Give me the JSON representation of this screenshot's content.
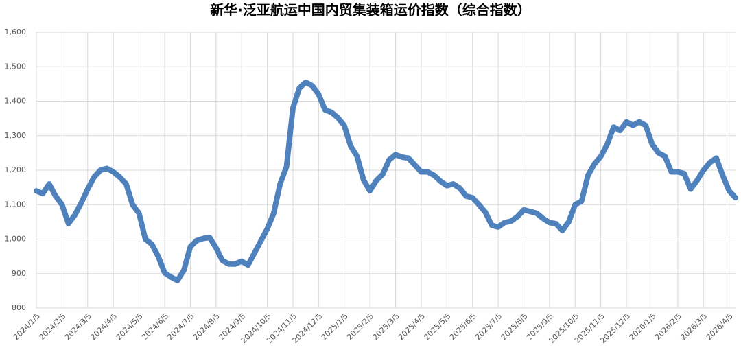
{
  "chart_data": {
    "type": "line",
    "title": "新华·泛亚航运中国内贸集装箱运价指数（综合指数）",
    "categories": [
      "2024/1/5",
      null,
      null,
      null,
      "2024/2/5",
      null,
      null,
      null,
      "2024/3/5",
      null,
      null,
      null,
      "2024/4/5",
      null,
      null,
      null,
      "2024/5/5",
      null,
      null,
      null,
      "2024/6/5",
      null,
      null,
      null,
      "2024/7/5",
      null,
      null,
      null,
      "2024/8/5",
      null,
      null,
      null,
      "2024/9/5",
      null,
      null,
      null,
      "2024/10/5",
      null,
      null,
      null,
      "2024/11/5",
      null,
      null,
      null,
      "2024/12/5",
      null,
      null,
      null,
      "2025/1/5",
      null,
      null,
      null,
      "2025/2/5",
      null,
      null,
      null,
      "2025/3/5",
      null,
      null,
      null,
      "2025/4/5",
      null,
      null,
      null,
      "2025/5/5",
      null,
      null,
      null,
      "2025/6/5",
      null,
      null,
      null,
      "2025/7/5",
      null,
      null,
      null,
      "2025/8/5",
      null,
      null,
      null,
      "2025/9/5",
      null,
      null,
      null,
      "2025/10/5",
      null,
      null,
      null,
      "2025/11/5",
      null,
      null,
      null,
      "2025/12/5",
      null,
      null,
      null,
      "2026/1/5",
      null,
      null,
      null,
      "2026/2/5",
      null,
      null,
      null,
      "2026/3/5",
      null,
      null,
      null,
      "2026/4/5",
      null
    ],
    "values": [
      1140,
      1132,
      1160,
      1125,
      1100,
      1045,
      1070,
      1105,
      1145,
      1180,
      1200,
      1205,
      1195,
      1180,
      1160,
      1100,
      1075,
      1000,
      985,
      950,
      902,
      890,
      880,
      910,
      978,
      996,
      1002,
      1005,
      975,
      938,
      928,
      928,
      936,
      925,
      960,
      995,
      1030,
      1075,
      1160,
      1210,
      1380,
      1438,
      1455,
      1445,
      1420,
      1375,
      1368,
      1352,
      1330,
      1270,
      1240,
      1172,
      1140,
      1170,
      1188,
      1230,
      1245,
      1238,
      1235,
      1215,
      1195,
      1195,
      1185,
      1168,
      1155,
      1160,
      1148,
      1125,
      1120,
      1100,
      1078,
      1040,
      1035,
      1048,
      1052,
      1065,
      1085,
      1080,
      1075,
      1060,
      1048,
      1045,
      1025,
      1050,
      1100,
      1110,
      1185,
      1218,
      1240,
      1275,
      1325,
      1315,
      1340,
      1330,
      1340,
      1330,
      1275,
      1250,
      1240,
      1195,
      1195,
      1190,
      1145,
      1170,
      1200,
      1222,
      1235,
      1185,
      1140,
      1120
    ],
    "color": "#4f81bd",
    "ylim": [
      800,
      1600
    ],
    "yticks": [
      800,
      900,
      {
        "value": 1000,
        "label": "1,000"
      },
      {
        "value": 1100,
        "label": "1,100"
      },
      {
        "value": 1200,
        "label": "1,200"
      },
      {
        "value": 1300,
        "label": "1,300"
      },
      {
        "value": 1400,
        "label": "1,400"
      },
      {
        "value": 1500,
        "label": "1,500"
      },
      {
        "value": 1600,
        "label": "1,600"
      }
    ],
    "grid": true
  }
}
